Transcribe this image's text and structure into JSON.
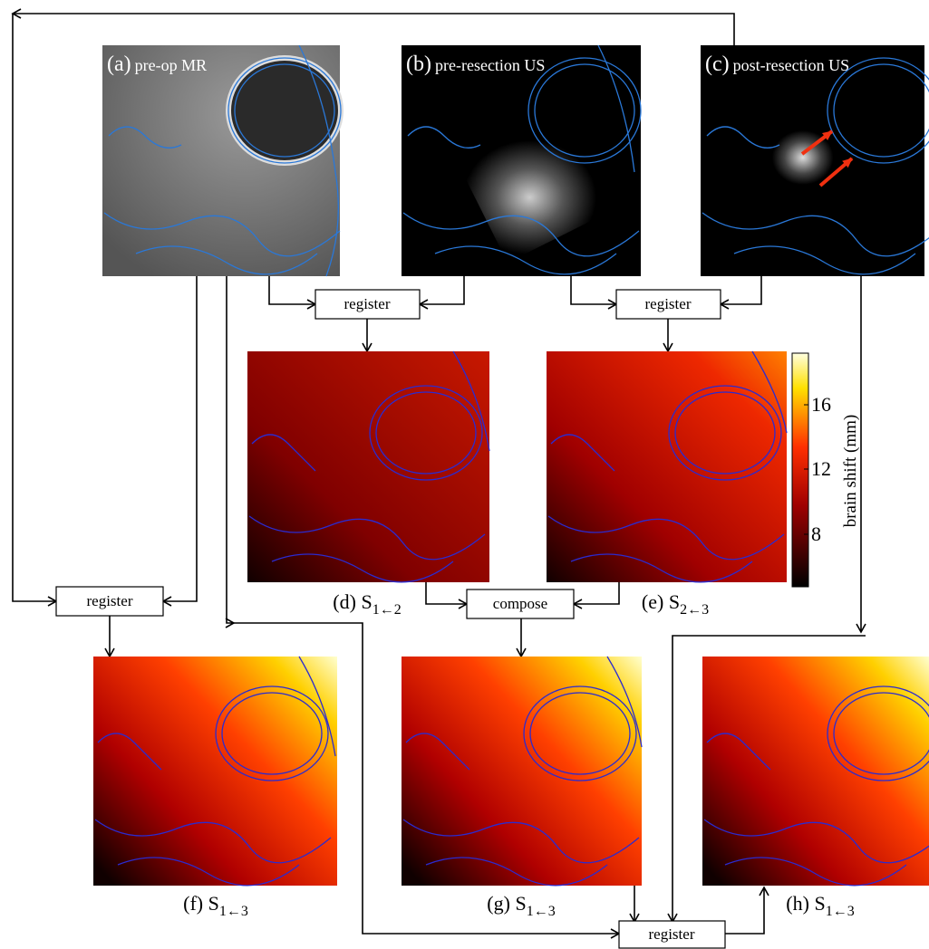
{
  "panels": [
    {
      "label": "(a)",
      "text": "pre-op MR"
    },
    {
      "label": "(b)",
      "text": "pre-resection US"
    },
    {
      "label": "(c)",
      "text": "post-resection US"
    }
  ],
  "boxes": [
    "register",
    "register",
    "register",
    "compose",
    "register"
  ],
  "captions": [
    {
      "text": "(d) S",
      "sub": "1←2"
    },
    {
      "text": "(e) S",
      "sub": "2←3"
    },
    {
      "text": "(f) S",
      "sub": "1←3"
    },
    {
      "text": "(g) S",
      "sub": "1←3"
    },
    {
      "text": "(h) S",
      "sub": "1←3"
    }
  ],
  "colorbar": {
    "label": "brain shift (mm)",
    "ticks": [
      "8",
      "12",
      "16"
    ]
  }
}
